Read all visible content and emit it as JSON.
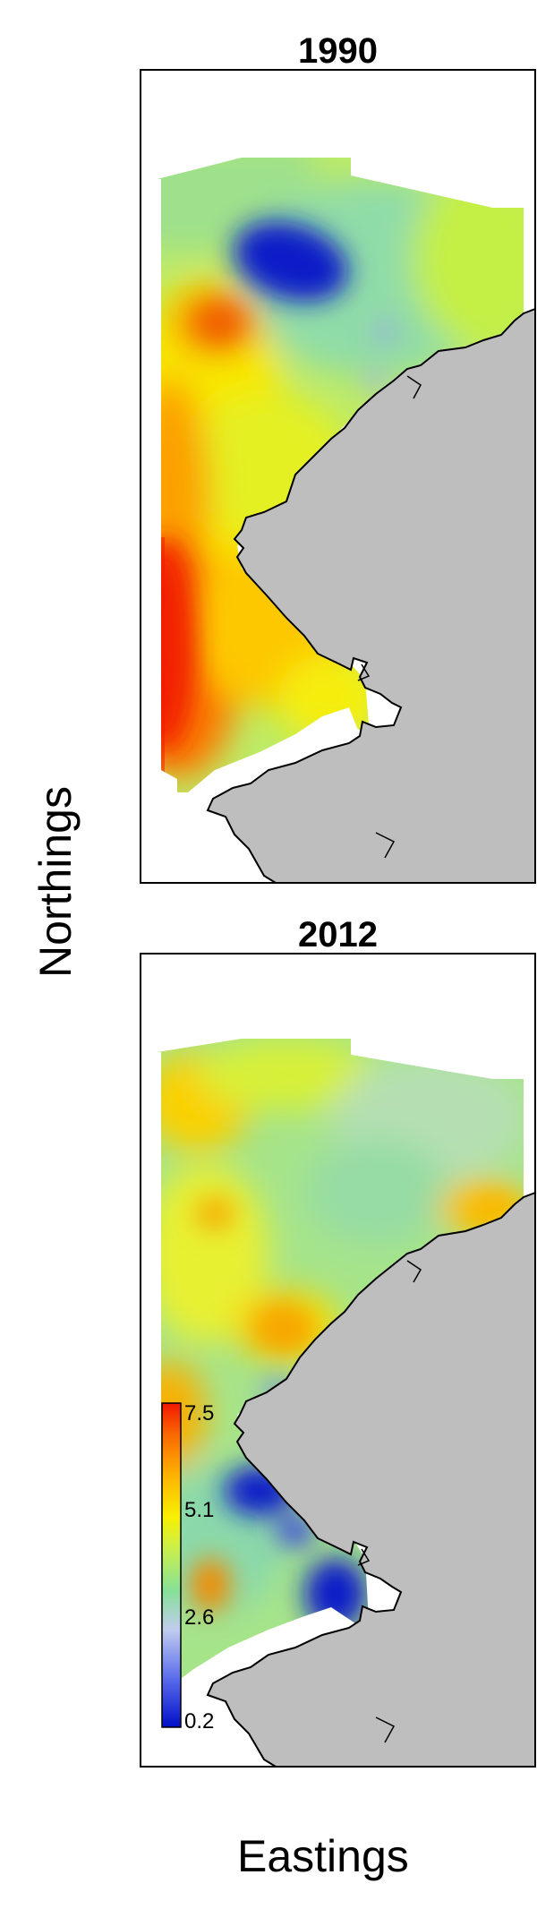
{
  "panels": [
    {
      "title": "1990"
    },
    {
      "title": "2012"
    }
  ],
  "axes": {
    "xlabel": "Eastings",
    "ylabel": "Northings"
  },
  "legend": {
    "ticks": [
      "7.5",
      "5.1",
      "2.6",
      "0.2"
    ],
    "range": [
      0.2,
      7.5
    ],
    "colors": [
      "#0010c8",
      "#5a6cec",
      "#c0ccee",
      "#86e098",
      "#c9f04c",
      "#f8f000",
      "#fdb100",
      "#fa6a00",
      "#f21800"
    ]
  },
  "colors": {
    "land": "#bebebe",
    "coastline": "#000000",
    "frame": "#000000"
  }
}
